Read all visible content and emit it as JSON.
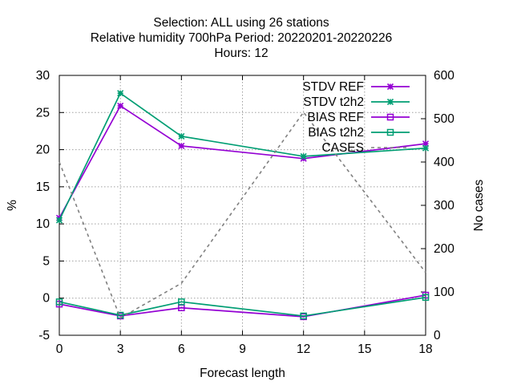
{
  "chart_data": {
    "type": "line",
    "title_lines": [
      "Selection: ALL using    26 stations",
      "Relative humidity 700hPa   Period: 20220201-20220226",
      "Hours:  12"
    ],
    "xlabel": "Forecast length",
    "ylabel": "%",
    "y2label": "No cases",
    "x_ticks": [
      "0",
      "3",
      "6",
      "9",
      "12",
      "15",
      "18"
    ],
    "xlim": [
      0,
      18
    ],
    "ylim": [
      -5,
      30
    ],
    "y_ticks": [
      "-5",
      "0",
      "5",
      "10",
      "15",
      "20",
      "25",
      "30"
    ],
    "y2lim": [
      0,
      600
    ],
    "y2_ticks": [
      "0",
      "100",
      "200",
      "300",
      "400",
      "500",
      "600"
    ],
    "grid": true,
    "legend_position": "top-right",
    "x": [
      0,
      3,
      6,
      12,
      18
    ],
    "series": [
      {
        "name": "STDV REF",
        "axis": "y1",
        "marker": "x-star",
        "color": "#9400d3",
        "values": [
          10.8,
          25.9,
          20.5,
          18.8,
          20.8
        ]
      },
      {
        "name": "STDV t2h2",
        "axis": "y1",
        "marker": "x-star",
        "color": "#009e73",
        "values": [
          10.5,
          27.6,
          21.8,
          19.1,
          20.2
        ]
      },
      {
        "name": "BIAS REF",
        "axis": "y1",
        "marker": "square",
        "color": "#9400d3",
        "values": [
          -0.8,
          -2.4,
          -1.3,
          -2.5,
          0.4
        ]
      },
      {
        "name": "BIAS t2h2",
        "axis": "y1",
        "marker": "square",
        "color": "#009e73",
        "values": [
          -0.5,
          -2.3,
          -0.5,
          -2.4,
          0.1
        ]
      },
      {
        "name": "CASES",
        "axis": "y2",
        "marker": "none",
        "color": "#808080",
        "dashed": true,
        "values": [
          400,
          40,
          120,
          515,
          145
        ]
      }
    ]
  }
}
